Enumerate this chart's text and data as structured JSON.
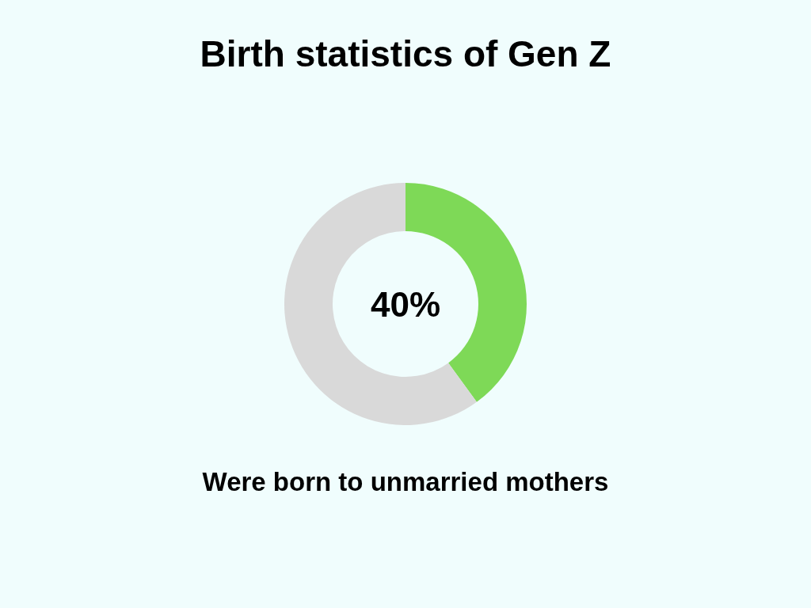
{
  "chart_data": {
    "type": "donut",
    "title": "Birth statistics of Gen Z",
    "categories": [
      null,
      null
    ],
    "values": [
      40,
      60
    ],
    "colors": [
      "#7ed957",
      "#d9d9d9"
    ],
    "annotations": [
      "40%",
      "Were born to unmarried mothers"
    ]
  }
}
